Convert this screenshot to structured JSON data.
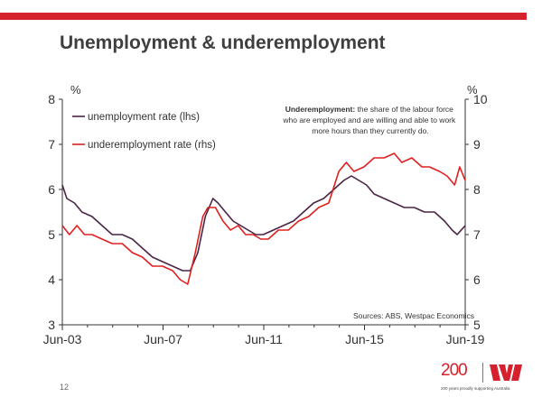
{
  "slide": {
    "title": "Unemployment & underemployment",
    "page_number": "12",
    "logo_text": "200",
    "logo_tagline": "200 years proudly supporting Australia"
  },
  "colors": {
    "accent": "#d5202d",
    "unemployment": "#4a2545",
    "underemployment": "#e0201f"
  },
  "icons": {
    "logo": "westpac-w-icon"
  },
  "chart_data": {
    "type": "line",
    "title": "Unemployment & underemployment",
    "ylabel_left": "%",
    "ylabel_right": "%",
    "ylim_left": [
      3,
      8
    ],
    "ylim_right": [
      5,
      10
    ],
    "yticks_left": [
      "3",
      "4",
      "5",
      "6",
      "7",
      "8"
    ],
    "yticks_right": [
      "5",
      "6",
      "7",
      "8",
      "9",
      "10"
    ],
    "xlim": [
      2003.42,
      2019.42
    ],
    "xticks": [
      {
        "label": "Jun-03",
        "x": 2003.42
      },
      {
        "label": "Jun-07",
        "x": 2007.42
      },
      {
        "label": "Jun-11",
        "x": 2011.42
      },
      {
        "label": "Jun-15",
        "x": 2015.42
      },
      {
        "label": "Jun-19",
        "x": 2019.42
      }
    ],
    "legend": "top-left",
    "grid": false,
    "annotation": {
      "bold": "Underemployment:",
      "lines": [
        "the share of the labour force",
        "who are employed and are willing and able to work",
        "more hours than they currently  do."
      ]
    },
    "source": "Sources: ABS, Westpac Economics",
    "series": [
      {
        "name": "unemployment rate (lhs)",
        "axis": "left",
        "color": "#4a2545",
        "x": [
          2003.42,
          2003.6,
          2003.9,
          2004.2,
          2004.6,
          2005.0,
          2005.4,
          2005.8,
          2006.2,
          2006.6,
          2007.0,
          2007.4,
          2007.8,
          2008.2,
          2008.5,
          2008.8,
          2009.1,
          2009.4,
          2009.6,
          2009.9,
          2010.2,
          2010.5,
          2010.8,
          2011.1,
          2011.4,
          2011.8,
          2012.2,
          2012.6,
          2013.0,
          2013.4,
          2013.8,
          2014.2,
          2014.6,
          2014.9,
          2015.2,
          2015.5,
          2015.8,
          2016.2,
          2016.6,
          2017.0,
          2017.4,
          2017.8,
          2018.2,
          2018.6,
          2018.9,
          2019.1,
          2019.42
        ],
        "y": [
          6.1,
          5.8,
          5.7,
          5.5,
          5.4,
          5.2,
          5.0,
          5.0,
          4.9,
          4.7,
          4.5,
          4.4,
          4.3,
          4.2,
          4.2,
          4.6,
          5.4,
          5.8,
          5.7,
          5.5,
          5.3,
          5.2,
          5.1,
          5.0,
          5.0,
          5.1,
          5.2,
          5.3,
          5.5,
          5.7,
          5.8,
          6.0,
          6.2,
          6.3,
          6.2,
          6.1,
          5.9,
          5.8,
          5.7,
          5.6,
          5.6,
          5.5,
          5.5,
          5.3,
          5.1,
          5.0,
          5.2
        ]
      },
      {
        "name": "underemployment rate (rhs)",
        "axis": "right",
        "color": "#e0201f",
        "x": [
          2003.42,
          2003.7,
          2004.0,
          2004.3,
          2004.6,
          2005.0,
          2005.4,
          2005.8,
          2006.2,
          2006.6,
          2007.0,
          2007.4,
          2007.8,
          2008.1,
          2008.4,
          2008.7,
          2009.0,
          2009.2,
          2009.5,
          2009.8,
          2010.1,
          2010.4,
          2010.7,
          2011.0,
          2011.3,
          2011.6,
          2012.0,
          2012.4,
          2012.8,
          2013.2,
          2013.6,
          2014.0,
          2014.4,
          2014.7,
          2015.0,
          2015.4,
          2015.8,
          2016.2,
          2016.6,
          2016.9,
          2017.3,
          2017.7,
          2018.0,
          2018.4,
          2018.7,
          2019.0,
          2019.2,
          2019.42
        ],
        "y": [
          7.2,
          7.0,
          7.2,
          7.0,
          7.0,
          6.9,
          6.8,
          6.8,
          6.6,
          6.5,
          6.3,
          6.3,
          6.2,
          6.0,
          5.9,
          6.6,
          7.4,
          7.6,
          7.6,
          7.3,
          7.1,
          7.2,
          7.0,
          7.0,
          6.9,
          6.9,
          7.1,
          7.1,
          7.3,
          7.4,
          7.6,
          7.7,
          8.4,
          8.6,
          8.4,
          8.5,
          8.7,
          8.7,
          8.8,
          8.6,
          8.7,
          8.5,
          8.5,
          8.4,
          8.3,
          8.1,
          8.5,
          8.2
        ]
      }
    ]
  }
}
